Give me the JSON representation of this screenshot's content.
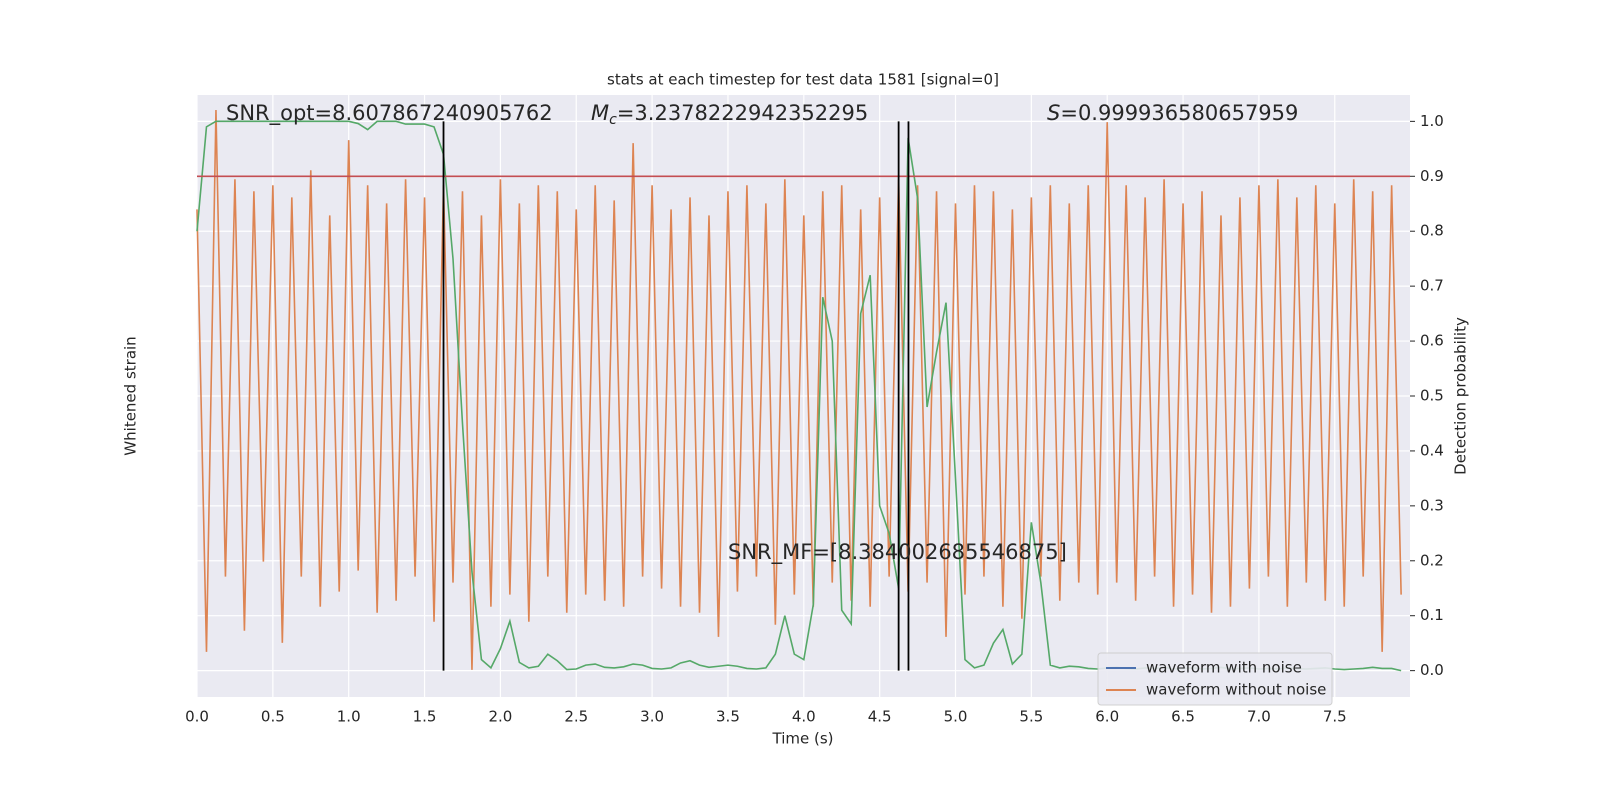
{
  "chart_data": {
    "type": "line",
    "title": "stats at each timestep for test data 1581 [signal=0]",
    "x_label": "Time (s)",
    "y_label": "Whitened strain",
    "y2_label": "Detection probability",
    "xlim": [
      0,
      7.996
    ],
    "ylim": [
      -1,
      1
    ],
    "y2lim": [
      -0.048,
      1.048
    ],
    "xticks": [
      {
        "value": 0,
        "label": "0.0"
      },
      0.5,
      {
        "value": 1,
        "label": "1.0"
      },
      1.5,
      {
        "value": 2,
        "label": "2.0"
      },
      2.5,
      {
        "value": 3,
        "label": "3.0"
      },
      3.5,
      {
        "value": 4,
        "label": "4.0"
      },
      4.5,
      {
        "value": 5,
        "label": "5.0"
      },
      5.5,
      {
        "value": 6,
        "label": "6.0"
      },
      6.5,
      {
        "value": 7,
        "label": "7.0"
      },
      7.5
    ],
    "y2ticks": [
      {
        "value": 0,
        "label": "0.0"
      },
      0.1,
      0.2,
      0.3,
      0.4,
      0.5,
      0.6,
      0.7,
      0.8,
      0.9,
      {
        "value": 1,
        "label": "1.0"
      }
    ],
    "grid": true,
    "legend": "lower right",
    "x": [
      0,
      0.0625,
      0.125,
      0.1875,
      0.25,
      0.3125,
      0.375,
      0.4375,
      0.5,
      0.5625,
      0.625,
      0.6875,
      0.75,
      0.8125,
      0.875,
      0.9375,
      1,
      1.0625,
      1.125,
      1.1875,
      1.25,
      1.3125,
      1.375,
      1.4375,
      1.5,
      1.5625,
      1.625,
      1.6875,
      1.75,
      1.8125,
      1.875,
      1.9375,
      2,
      2.0625,
      2.125,
      2.1875,
      2.25,
      2.3125,
      2.375,
      2.4375,
      2.5,
      2.5625,
      2.625,
      2.6875,
      2.75,
      2.8125,
      2.875,
      2.9375,
      3,
      3.0625,
      3.125,
      3.1875,
      3.25,
      3.3125,
      3.375,
      3.4375,
      3.5,
      3.5625,
      3.625,
      3.6875,
      3.75,
      3.8125,
      3.875,
      3.9375,
      4,
      4.0625,
      4.125,
      4.1875,
      4.25,
      4.3125,
      4.375,
      4.4375,
      4.5,
      4.5625,
      4.625,
      4.6875,
      4.75,
      4.8125,
      4.875,
      4.9375,
      5,
      5.0625,
      5.125,
      5.1875,
      5.25,
      5.3125,
      5.375,
      5.4375,
      5.5,
      5.5625,
      5.625,
      5.6875,
      5.75,
      5.8125,
      5.875,
      5.9375,
      6,
      6.0625,
      6.125,
      6.1875,
      6.25,
      6.3125,
      6.375,
      6.4375,
      6.5,
      6.5625,
      6.625,
      6.6875,
      6.75,
      6.8125,
      6.875,
      6.9375,
      7,
      7.0625,
      7.125,
      7.1875,
      7.25,
      7.3125,
      7.375,
      7.4375,
      7.5,
      7.5625,
      7.625,
      7.6875,
      7.75,
      7.8125,
      7.875,
      7.9375
    ],
    "series": [
      {
        "name": "waveform with noise",
        "color": "#4c72b0"
      },
      {
        "name": "waveform without noise",
        "color": "#dd8452",
        "values": [
          0.62,
          -0.85,
          0.95,
          -0.6,
          0.72,
          -0.78,
          0.68,
          -0.55,
          0.7,
          -0.82,
          0.66,
          -0.6,
          0.75,
          -0.7,
          0.6,
          -0.65,
          0.85,
          -0.58,
          0.7,
          -0.72,
          0.64,
          -0.68,
          0.72,
          -0.6,
          0.66,
          -0.75,
          0.7,
          -0.62,
          0.68,
          -0.91,
          0.6,
          -0.7,
          0.72,
          -0.66,
          0.64,
          -0.75,
          0.7,
          -0.6,
          0.68,
          -0.72,
          0.62,
          -0.66,
          0.7,
          -0.68,
          0.65,
          -0.7,
          0.84,
          -0.6,
          0.7,
          -0.64,
          0.62,
          -0.7,
          0.66,
          -0.72,
          0.6,
          -0.8,
          0.68,
          -0.65,
          0.7,
          -0.6,
          0.64,
          -0.76,
          0.72,
          -0.66,
          0.6,
          -0.7,
          0.68,
          -0.62,
          0.7,
          -0.68,
          0.62,
          -0.7,
          0.66,
          -0.6,
          0.72,
          -0.65,
          0.7,
          -0.62,
          0.68,
          -0.8,
          0.64,
          -0.66,
          0.7,
          -0.6,
          0.68,
          -0.7,
          0.62,
          -0.74,
          0.66,
          -0.6,
          0.7,
          -0.68,
          0.64,
          -0.62,
          0.7,
          -0.66,
          0.91,
          -0.62,
          0.7,
          -0.68,
          0.66,
          -0.6,
          0.72,
          -0.7,
          0.64,
          -0.66,
          0.68,
          -0.72,
          0.6,
          -0.7,
          0.66,
          -0.64,
          0.7,
          -0.6,
          0.72,
          -0.7,
          0.66,
          -0.62,
          0.7,
          -0.68,
          0.64,
          -0.7,
          0.72,
          -0.6,
          0.68,
          -0.85,
          0.7,
          -0.66
        ]
      },
      {
        "color": "#55a868",
        "axis": "y2",
        "values": [
          0.8,
          0.99,
          1,
          1,
          1,
          1,
          1,
          1,
          1,
          1,
          1,
          1,
          1,
          1,
          1,
          1,
          1,
          0.996,
          0.985,
          1,
          1,
          1,
          0.995,
          0.995,
          0.995,
          0.99,
          0.94,
          0.75,
          0.45,
          0.18,
          0.02,
          0.005,
          0.04,
          0.09,
          0.015,
          0.005,
          0.008,
          0.03,
          0.018,
          0.002,
          0.003,
          0.01,
          0.012,
          0.006,
          0.005,
          0.007,
          0.012,
          0.01,
          0.004,
          0.003,
          0.005,
          0.014,
          0.018,
          0.01,
          0.006,
          0.008,
          0.01,
          0.008,
          0.004,
          0.003,
          0.005,
          0.03,
          0.1,
          0.03,
          0.02,
          0.12,
          0.68,
          0.6,
          0.11,
          0.085,
          0.65,
          0.72,
          0.3,
          0.25,
          0.15,
          0.97,
          0.86,
          0.48,
          0.58,
          0.67,
          0.35,
          0.02,
          0.005,
          0.01,
          0.05,
          0.075,
          0.012,
          0.03,
          0.27,
          0.16,
          0.01,
          0.005,
          0.008,
          0.007,
          0.004,
          0.003,
          0.005,
          0.006,
          0.004,
          0.003,
          0.005,
          0.004,
          0.006,
          0.003,
          0.004,
          0.005,
          0.003,
          0.004,
          0.006,
          0.003,
          0.004,
          0.005,
          0.003,
          0.004,
          0.003,
          0.005,
          0.004,
          0.003,
          0.004,
          0.005,
          0.003,
          0.002,
          0.003,
          0.004,
          0.006,
          0.004,
          0.004,
          0
        ]
      }
    ],
    "hline": {
      "value": 0.9,
      "color": "#c44e52",
      "axis": "y2"
    },
    "vlines": {
      "values": [
        1.625,
        4.625,
        4.69
      ],
      "color": "#000000"
    },
    "annotations": [
      {
        "text": "SNR_opt=8.607867240905762"
      },
      {
        "symbol": "M",
        "subscript": "c",
        "text": "=3.2378222942352295"
      },
      {
        "symbol": "S",
        "text": "=0.999936580657959"
      },
      {
        "text": "SNR_MF=[8.384002685546875]"
      }
    ]
  }
}
